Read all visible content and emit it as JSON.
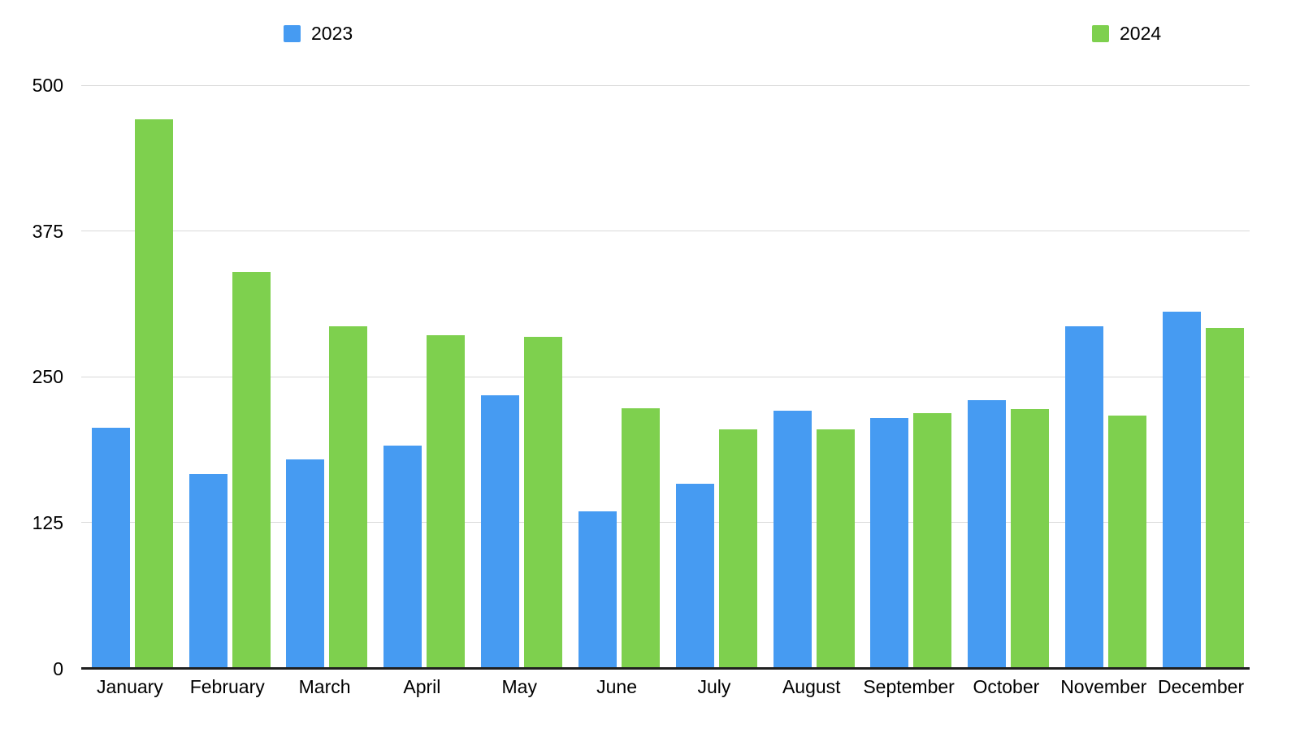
{
  "chart_data": {
    "type": "bar",
    "title": "",
    "xlabel": "",
    "ylabel": "",
    "categories": [
      "January",
      "February",
      "March",
      "April",
      "May",
      "June",
      "July",
      "August",
      "September",
      "October",
      "November",
      "December"
    ],
    "series": [
      {
        "name": "2023",
        "color": "#469bf2",
        "values": [
          206,
          167,
          179,
          191,
          234,
          135,
          158,
          221,
          215,
          230,
          293,
          306
        ]
      },
      {
        "name": "2024",
        "color": "#7ed04e",
        "values": [
          471,
          340,
          293,
          286,
          284,
          223,
          205,
          205,
          219,
          222,
          217,
          292
        ]
      }
    ],
    "yticks": [
      0,
      125,
      250,
      375,
      500
    ],
    "ylim": [
      0,
      500
    ],
    "grid": true,
    "legend_position": "top"
  },
  "legend": [
    {
      "label": "2023",
      "color": "#469bf2"
    },
    {
      "label": "2024",
      "color": "#7ed04e"
    }
  ],
  "colors": {
    "series_2023": "#469bf2",
    "series_2024": "#7ed04e",
    "gridline": "#d9d9d9",
    "axis_line": "#1f1f1f",
    "text": "#000000",
    "background": "#ffffff"
  }
}
